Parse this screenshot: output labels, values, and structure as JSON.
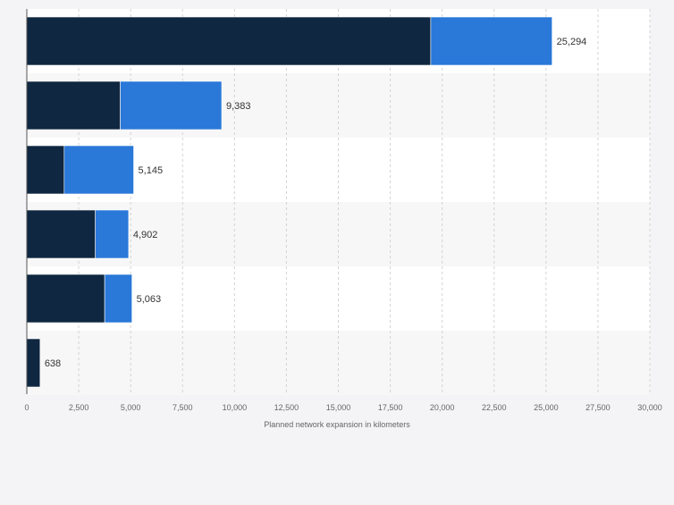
{
  "chart_data": {
    "type": "bar",
    "orientation": "horizontal",
    "stacked": true,
    "categories": [
      "",
      "",
      "",
      "",
      "",
      ""
    ],
    "series": [
      {
        "name": "",
        "color": "#0f2740",
        "values": [
          19450,
          4500,
          1800,
          3300,
          3750,
          638
        ]
      },
      {
        "name": "",
        "color": "#2a78d8",
        "values": [
          5844,
          4883,
          3345,
          1602,
          1313,
          0
        ]
      }
    ],
    "totals": [
      25294,
      9383,
      5145,
      4902,
      5063,
      638
    ],
    "total_labels": [
      "25,294",
      "9,383",
      "5,145",
      "4,902",
      "5,063",
      "638"
    ],
    "xticks": [
      0,
      2500,
      5000,
      7500,
      10000,
      12500,
      15000,
      17500,
      20000,
      22500,
      25000,
      27500,
      30000
    ],
    "xtick_labels": [
      "0",
      "2,500",
      "5,000",
      "7,500",
      "10,000",
      "12,500",
      "15,000",
      "17,500",
      "20,000",
      "22,500",
      "25,000",
      "27,500",
      "30,000"
    ],
    "xlim": [
      0,
      30000
    ],
    "xlabel": "Planned network expansion in kilometers",
    "ylabel": "",
    "title": "",
    "grid": true,
    "legend": "none"
  }
}
